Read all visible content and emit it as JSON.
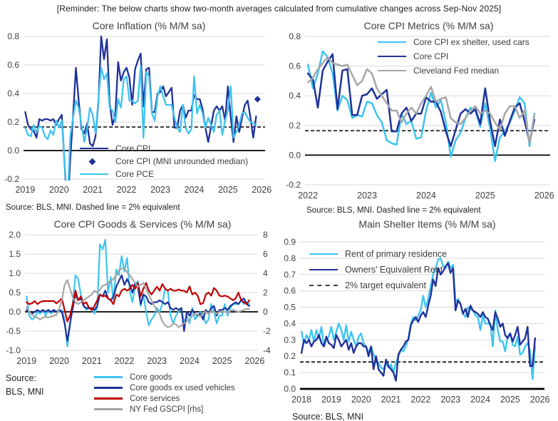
{
  "header": {
    "text": "[Reminder: The below charts show two-month averages calculated from cumulative changes across Sep-Nov 2025]"
  },
  "colors": {
    "navy": "#1F3199",
    "cyan": "#3EC4F0",
    "red": "#C00000",
    "gray": "#A6A6A6",
    "dash": "#3D3D3D",
    "grid": "#D9D9D9",
    "zero": "#000000",
    "text": "#404040"
  },
  "chart_data": [
    {
      "type": "line",
      "title": "Core Inflation (% M/M sa)",
      "source": "Source: BLS, MNI. Dashed line = 2% equivalent",
      "x_start": 2019,
      "xlim": [
        2018.95,
        2026.1
      ],
      "ylim": [
        -0.2,
        0.8
      ],
      "xticks": [
        2019,
        2020,
        2021,
        2022,
        2023,
        2024,
        2025,
        2026
      ],
      "yticks": [
        "0.8",
        "0.6",
        "0.4",
        "0.2",
        "0.0",
        "-0.2"
      ],
      "grid": true,
      "legend_position": "inside-bottom-center",
      "reflines": [
        {
          "v": 0.165,
          "label": "2% equivalent"
        }
      ],
      "series": [
        {
          "name": "Core CPI",
          "color": "navy",
          "width": 2.3,
          "values": [
            0.27,
            0.18,
            0.15,
            0.14,
            0.09,
            0.22,
            0.21,
            0.22,
            0.22,
            0.21,
            0.22,
            0.18,
            0.22,
            0.25,
            -0.1,
            -0.45,
            -0.06,
            0.24,
            0.58,
            0.35,
            0.15,
            0.12,
            0.19,
            0.05,
            0.03,
            0.1,
            0.34,
            0.8,
            0.64,
            0.78,
            0.33,
            0.18,
            0.25,
            0.62,
            0.49,
            0.55,
            0.58,
            0.51,
            0.32,
            0.57,
            0.63,
            0.68,
            0.31,
            0.57,
            0.58,
            0.27,
            0.27,
            0.4,
            0.41,
            0.45,
            0.38,
            0.41,
            0.44,
            0.16,
            0.16,
            0.28,
            0.32,
            0.23,
            0.28,
            0.28,
            0.39,
            0.36,
            0.36,
            0.29,
            0.16,
            0.06,
            0.17,
            0.28,
            0.31,
            0.28,
            0.31,
            0.21,
            0.45,
            0.23,
            0.06,
            0.24,
            0.13,
            0.23,
            0.32,
            0.35,
            0.23,
            0.09,
            0.24
          ]
        },
        {
          "name": "Core CPI (MNI unrounded median)",
          "color": "navy",
          "point": {
            "x": 2025.875,
            "y": 0.36
          }
        },
        {
          "name": "Core PCE",
          "color": "cyan",
          "width": 2.3,
          "values": [
            0.16,
            0.11,
            0.1,
            0.18,
            0.13,
            0.17,
            0.16,
            0.1,
            0.08,
            0.14,
            0.11,
            0.21,
            0.16,
            0.21,
            -0.08,
            -0.4,
            0.1,
            0.23,
            0.35,
            0.3,
            0.18,
            0.06,
            0.16,
            0.3,
            0.25,
            0.12,
            0.36,
            0.58,
            0.5,
            0.54,
            0.3,
            0.28,
            0.2,
            0.36,
            0.3,
            0.5,
            0.52,
            0.35,
            0.35,
            0.33,
            0.35,
            0.59,
            0.09,
            0.55,
            0.52,
            0.26,
            0.21,
            0.38,
            0.45,
            0.38,
            0.32,
            0.32,
            0.32,
            0.23,
            0.16,
            0.13,
            0.32,
            0.16,
            0.12,
            0.15,
            0.52,
            0.26,
            0.32,
            0.26,
            0.16,
            0.23,
            0.18,
            0.13,
            0.25,
            0.28,
            0.11,
            0.21,
            0.28,
            0.45,
            0.09,
            0.13,
            0.18,
            0.26,
            0.27,
            0.23,
            0.2,
            0.19,
            0.18
          ]
        }
      ]
    },
    {
      "type": "line",
      "title": "Core CPI Metrics (% M/M sa)",
      "source": "Source: BLS, MNI. Dashed line = 2% equivalent",
      "x_start": 2022,
      "xlim": [
        2021.95,
        2026.1
      ],
      "ylim": [
        -0.2,
        0.8
      ],
      "xticks": [
        2022,
        2023,
        2024,
        2025,
        2026
      ],
      "yticks": [
        "0.8",
        "0.6",
        "0.4",
        "0.2",
        "0.0",
        "-0.2"
      ],
      "grid": true,
      "legend_position": "inside-top-right",
      "reflines": [
        {
          "v": 0.165,
          "label": "2% equivalent"
        }
      ],
      "series": [
        {
          "name": "Core CPI ex shelter, used cars",
          "color": "cyan",
          "width": 2.5,
          "values": [
            0.61,
            0.45,
            0.55,
            0.7,
            0.66,
            0.55,
            0.3,
            0.4,
            0.37,
            0.25,
            0.27,
            0.26,
            0.36,
            0.35,
            0.27,
            0.22,
            0.1,
            0.08,
            0.07,
            0.28,
            0.21,
            0.23,
            0.11,
            0.12,
            0.3,
            0.42,
            0.32,
            0.37,
            0.22,
            -0.01,
            0.1,
            0.15,
            0.25,
            0.32,
            0.3,
            0.19,
            0.35,
            0.18,
            -0.04,
            0.12,
            0.16,
            0.22,
            0.3,
            0.39,
            0.35,
            0.06,
            0.28
          ]
        },
        {
          "name": "Core CPI",
          "color": "navy",
          "width": 2.5,
          "values": [
            0.55,
            0.51,
            0.32,
            0.57,
            0.63,
            0.68,
            0.31,
            0.57,
            0.58,
            0.27,
            0.27,
            0.4,
            0.41,
            0.45,
            0.38,
            0.41,
            0.44,
            0.16,
            0.16,
            0.28,
            0.32,
            0.23,
            0.28,
            0.28,
            0.39,
            0.36,
            0.36,
            0.29,
            0.16,
            0.06,
            0.17,
            0.28,
            0.31,
            0.28,
            0.31,
            0.21,
            0.45,
            0.23,
            0.06,
            0.24,
            0.13,
            0.23,
            0.32,
            0.35,
            0.23,
            0.09,
            0.24
          ]
        },
        {
          "name": "Cleveland Fed median",
          "color": "gray",
          "width": 2.5,
          "values": [
            0.49,
            0.52,
            0.58,
            0.62,
            0.66,
            0.62,
            0.61,
            0.6,
            0.61,
            0.54,
            0.47,
            0.5,
            0.58,
            0.55,
            0.45,
            0.4,
            0.35,
            0.3,
            0.3,
            0.22,
            0.28,
            0.32,
            0.28,
            0.35,
            0.4,
            0.46,
            0.36,
            0.38,
            0.39,
            0.25,
            0.22,
            0.21,
            0.25,
            0.3,
            0.33,
            0.28,
            0.3,
            0.28,
            0.22,
            0.17,
            0.28,
            0.33,
            0.33,
            0.25,
            0.3,
            0.08,
            0.27
          ]
        }
      ]
    },
    {
      "type": "line",
      "title": "Core CPI Goods & Services  (% M/M sa)",
      "source": "Source:\nBLS, MNI",
      "x_start": 2019,
      "xlim": [
        2018.95,
        2026.1
      ],
      "ylim": [
        -1.0,
        2.0
      ],
      "y2lim": [
        -4,
        8
      ],
      "xticks": [
        2019,
        2020,
        2021,
        2022,
        2023,
        2024,
        2025,
        2026
      ],
      "yticks": [
        "2.0",
        "1.5",
        "1.0",
        "0.5",
        "0.0",
        "-0.5",
        "-1.0"
      ],
      "y2ticks": [
        "8",
        "6",
        "4",
        "2",
        "0",
        "-2",
        "-4"
      ],
      "grid": true,
      "legend_position": "below",
      "series": [
        {
          "name": "Core goods",
          "color": "cyan",
          "width": 2.2,
          "values": [
            0.4,
            -0.1,
            -0.2,
            -0.15,
            0.0,
            -0.05,
            0.05,
            -0.1,
            0.05,
            -0.05,
            0.05,
            0.0,
            0.0,
            0.05,
            -0.2,
            -0.9,
            -0.35,
            0.2,
            0.95,
            0.85,
            0.45,
            0.15,
            0.05,
            0.1,
            0.1,
            -0.05,
            0.1,
            1.75,
            1.62,
            1.87,
            0.5,
            0.9,
            0.3,
            1.1,
            0.95,
            1.45,
            1.05,
            1.4,
            0.55,
            0.25,
            0.7,
            0.8,
            0.15,
            0.45,
            0.0,
            -0.35,
            -0.2,
            -0.1,
            0.1,
            0.0,
            0.2,
            0.6,
            0.55,
            -0.1,
            -0.3,
            -0.1,
            0.0,
            0.1,
            -0.3,
            -0.1,
            -0.3,
            0.1,
            -0.2,
            -0.1,
            0.0,
            -0.1,
            -0.3,
            -0.2,
            0.2,
            0.0,
            -0.3,
            -0.1,
            -0.1,
            0.2,
            -0.1,
            0.1,
            0.2,
            0.2,
            0.2,
            0.3,
            0.2,
            0.25,
            0.2
          ]
        },
        {
          "name": "Core goods ex used vehicles",
          "color": "navy",
          "width": 2.2,
          "values": [
            0.05,
            0.0,
            -0.05,
            0.0,
            0.05,
            0.0,
            0.05,
            0.0,
            0.05,
            0.0,
            0.05,
            0.0,
            0.05,
            0.0,
            -0.3,
            -0.75,
            -0.3,
            0.1,
            0.45,
            0.3,
            0.35,
            0.15,
            0.1,
            0.1,
            0.1,
            0.05,
            0.15,
            0.45,
            0.4,
            0.55,
            0.35,
            0.3,
            0.4,
            0.65,
            0.8,
            0.95,
            0.7,
            0.85,
            0.7,
            0.5,
            0.75,
            0.65,
            0.2,
            0.45,
            0.4,
            0.25,
            0.2,
            0.25,
            0.25,
            0.3,
            0.25,
            0.2,
            0.25,
            0.1,
            0.05,
            0.1,
            0.05,
            0.1,
            -0.5,
            0.0,
            -0.1,
            0.05,
            -0.05,
            -0.1,
            -0.05,
            -0.2,
            0.05,
            -0.05,
            0.1,
            0.15,
            -0.1,
            0.05,
            0.05,
            0.1,
            0.05,
            0.15,
            0.2,
            0.25,
            0.2,
            0.3,
            0.35,
            0.2,
            0.15
          ]
        },
        {
          "name": "Core services",
          "color": "red",
          "width": 2.2,
          "values": [
            0.25,
            0.2,
            0.22,
            0.28,
            0.2,
            0.25,
            0.28,
            0.28,
            0.28,
            0.28,
            0.28,
            0.22,
            0.28,
            0.35,
            0.05,
            -0.25,
            -0.1,
            0.2,
            0.55,
            0.3,
            0.4,
            0.2,
            0.25,
            0.1,
            0.05,
            0.15,
            0.3,
            0.45,
            0.4,
            0.42,
            0.35,
            0.3,
            0.2,
            0.45,
            0.4,
            0.55,
            0.6,
            0.55,
            0.6,
            0.7,
            0.6,
            0.75,
            0.4,
            0.6,
            0.75,
            0.55,
            0.45,
            0.55,
            0.65,
            0.55,
            0.72,
            0.6,
            0.55,
            0.6,
            0.55,
            0.55,
            0.58,
            0.55,
            0.55,
            0.5,
            0.66,
            0.45,
            0.5,
            0.42,
            0.2,
            0.22,
            0.45,
            0.5,
            0.42,
            0.62,
            0.55,
            0.42,
            0.4,
            0.42,
            0.4,
            0.35,
            0.3,
            0.35,
            0.5,
            0.3,
            0.25,
            0.2,
            0.3
          ]
        },
        {
          "name": "NY Fed GSCPI [rhs]",
          "color": "gray",
          "width": 2.2,
          "axis": "right",
          "values": [
            0.5,
            0.0,
            -0.3,
            -0.5,
            -0.6,
            -0.8,
            -0.6,
            -0.5,
            -0.6,
            -0.5,
            -0.4,
            -0.3,
            0.3,
            1.2,
            2.8,
            3.3,
            2.4,
            1.5,
            1.0,
            0.8,
            1.0,
            1.2,
            1.4,
            1.6,
            1.8,
            2.2,
            2.0,
            2.3,
            2.7,
            2.8,
            3.0,
            3.2,
            3.4,
            3.8,
            4.3,
            4.5,
            4.5,
            4.1,
            3.8,
            3.4,
            3.0,
            2.6,
            2.8,
            3.0,
            2.4,
            1.8,
            1.2,
            0.6,
            0.2,
            -0.2,
            -1.0,
            -1.4,
            -1.6,
            -1.5,
            -1.2,
            -1.3,
            -1.6,
            -1.4,
            -1.2,
            -1.0,
            -0.8,
            -0.4,
            -0.2,
            -0.3,
            -0.5,
            -0.1,
            0.0,
            -0.2,
            0.1,
            0.0,
            -0.2,
            0.0,
            0.1,
            0.0,
            -0.1,
            0.1,
            0.2,
            0.1,
            0.0,
            0.1,
            0.2,
            0.3,
            0.3
          ]
        }
      ]
    },
    {
      "type": "line",
      "title": "Main Shelter Items (% M/M sa)",
      "source": "Source: BLS, MNI",
      "x_start": 2018,
      "xlim": [
        2017.95,
        2026.15
      ],
      "ylim": [
        0,
        0.9
      ],
      "xticks": [
        2018,
        2019,
        2020,
        2021,
        2022,
        2023,
        2024,
        2025,
        2026
      ],
      "yticks": [
        "0.9",
        "0.8",
        "0.7",
        "0.6",
        "0.5",
        "0.4",
        "0.3",
        "0.2",
        "0.1",
        "0.0"
      ],
      "grid": true,
      "legend_position": "inside-top-left",
      "zero_width": 2.8,
      "series": [
        {
          "name": "Rent of primary residence",
          "color": "cyan",
          "width": 2.4,
          "values": [
            0.35,
            0.28,
            0.33,
            0.3,
            0.36,
            0.29,
            0.36,
            0.31,
            0.38,
            0.26,
            0.3,
            0.32,
            0.38,
            0.3,
            0.35,
            0.4,
            0.36,
            0.3,
            0.39,
            0.29,
            0.35,
            0.3,
            0.26,
            0.32,
            0.34,
            0.28,
            0.26,
            0.22,
            0.26,
            0.21,
            0.18,
            0.16,
            0.13,
            0.12,
            0.16,
            0.13,
            0.15,
            0.1,
            0.16,
            0.2,
            0.24,
            0.23,
            0.26,
            0.31,
            0.4,
            0.44,
            0.42,
            0.45,
            0.48,
            0.57,
            0.5,
            0.55,
            0.63,
            0.7,
            0.74,
            0.79,
            0.8,
            0.75,
            0.74,
            0.78,
            0.74,
            0.76,
            0.53,
            0.55,
            0.52,
            0.46,
            0.44,
            0.5,
            0.49,
            0.48,
            0.45,
            0.44,
            0.36,
            0.45,
            0.4,
            0.4,
            0.4,
            0.26,
            0.48,
            0.36,
            0.29,
            0.29,
            0.23,
            0.32,
            0.34,
            0.27,
            0.26,
            0.32,
            0.21,
            0.22,
            0.26,
            0.28,
            0.23,
            0.06,
            0.26
          ]
        },
        {
          "name": "Owners' Equivalent Rent",
          "color": "navy",
          "width": 2.4,
          "values": [
            0.22,
            0.3,
            0.28,
            0.3,
            0.26,
            0.29,
            0.3,
            0.33,
            0.28,
            0.26,
            0.32,
            0.28,
            0.27,
            0.25,
            0.33,
            0.3,
            0.26,
            0.28,
            0.3,
            0.24,
            0.28,
            0.22,
            0.26,
            0.28,
            0.28,
            0.26,
            0.26,
            0.2,
            0.26,
            0.12,
            0.2,
            0.12,
            0.1,
            0.08,
            0.18,
            0.14,
            0.12,
            0.1,
            0.05,
            0.21,
            0.24,
            0.26,
            0.29,
            0.3,
            0.39,
            0.42,
            0.44,
            0.41,
            0.45,
            0.47,
            0.44,
            0.51,
            0.57,
            0.67,
            0.63,
            0.74,
            0.7,
            0.72,
            0.75,
            0.77,
            0.71,
            0.74,
            0.48,
            0.54,
            0.52,
            0.46,
            0.49,
            0.44,
            0.51,
            0.48,
            0.47,
            0.46,
            0.44,
            0.47,
            0.44,
            0.43,
            0.39,
            0.36,
            0.47,
            0.43,
            0.38,
            0.4,
            0.33,
            0.31,
            0.34,
            0.29,
            0.33,
            0.38,
            0.27,
            0.29,
            0.31,
            0.38,
            0.14,
            0.14,
            0.31
          ]
        },
        {
          "name": "2% target equivalent",
          "color": "dash",
          "refline": 0.165
        }
      ]
    }
  ]
}
